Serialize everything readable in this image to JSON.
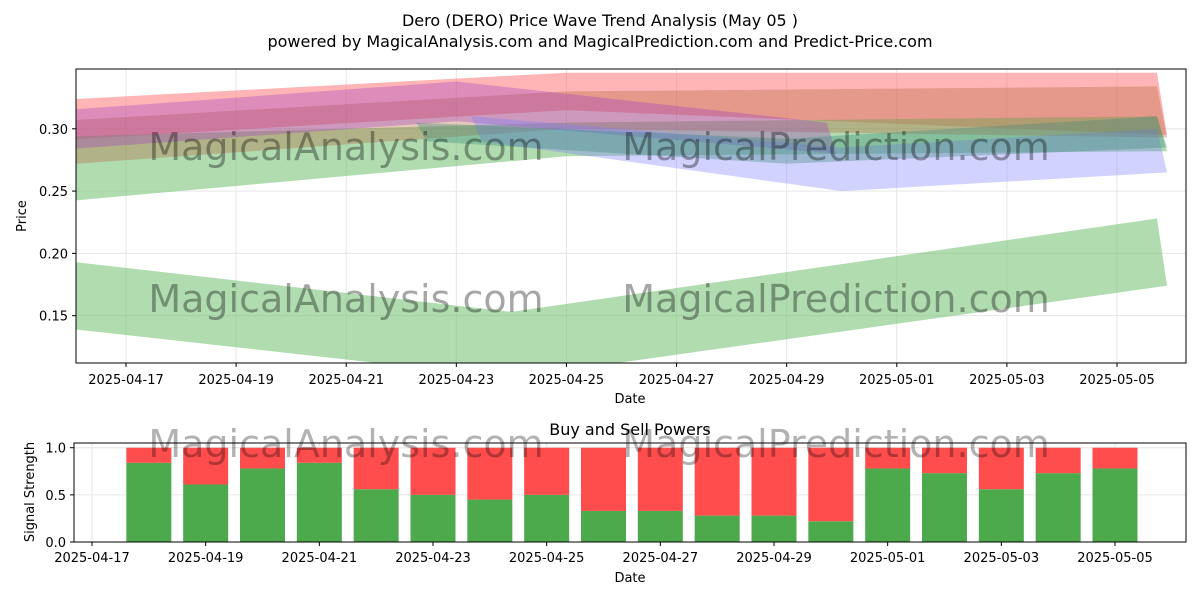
{
  "title": "Dero (DERO) Price Wave Trend Analysis (May 05 )",
  "subtitle": "powered by MagicalAnalysis.com and MagicalPrediction.com and Predict-Price.com",
  "watermark_left": "MagicalAnalysis.com",
  "watermark_right": "MagicalPrediction.com",
  "colors": {
    "red_band": "#ff6b6b",
    "green_band": "#6fbf6f",
    "blue_band": "#7f7fff",
    "purple_band": "#a040c0",
    "brown_band": "#b5653d",
    "teal_band": "#3a8a7a",
    "buy": "#4caa4c",
    "sell": "#ff4c4c",
    "grid": "#e6e6e6"
  },
  "chart_data": [
    {
      "type": "area",
      "xlabel": "Date",
      "ylabel": "Price",
      "ylim": [
        0.112,
        0.348
      ],
      "x_ticks": [
        "2025-04-17",
        "2025-04-19",
        "2025-04-21",
        "2025-04-23",
        "2025-04-25",
        "2025-04-27",
        "2025-04-29",
        "2025-05-01",
        "2025-05-03",
        "2025-05-05"
      ],
      "y_ticks": [
        "0.15",
        "0.20",
        "0.25",
        "0.30"
      ],
      "grid": true,
      "bands": [
        {
          "color": "red",
          "points": [
            {
              "x": "2025-04-16",
              "top": 0.322,
              "bottom": 0.29
            },
            {
              "x": "2025-04-25",
              "top": 0.345,
              "bottom": 0.315
            },
            {
              "x": "2025-05-05",
              "top": 0.345,
              "bottom": 0.295
            }
          ]
        },
        {
          "color": "green",
          "points": [
            {
              "x": "2025-04-16",
              "top": 0.293,
              "bottom": 0.24
            },
            {
              "x": "2025-04-25",
              "top": 0.305,
              "bottom": 0.278
            },
            {
              "x": "2025-05-05",
              "top": 0.31,
              "bottom": 0.282
            }
          ]
        },
        {
          "color": "green",
          "points": [
            {
              "x": "2025-04-16",
              "top": 0.197,
              "bottom": 0.142
            },
            {
              "x": "2025-04-24",
              "top": 0.153,
              "bottom": 0.1
            },
            {
              "x": "2025-05-05",
              "top": 0.228,
              "bottom": 0.174
            }
          ]
        },
        {
          "color": "brown",
          "points": [
            {
              "x": "2025-04-16",
              "top": 0.305,
              "bottom": 0.27
            },
            {
              "x": "2025-04-25",
              "top": 0.33,
              "bottom": 0.3
            },
            {
              "x": "2025-05-05",
              "top": 0.334,
              "bottom": 0.293
            }
          ]
        },
        {
          "color": "purple",
          "points": [
            {
              "x": "2025-04-16",
              "top": 0.313,
              "bottom": 0.282
            },
            {
              "x": "2025-04-23",
              "top": 0.338,
              "bottom": 0.306
            },
            {
              "x": "2025-04-29",
              "top": 0.305,
              "bottom": 0.28
            }
          ]
        },
        {
          "color": "blue",
          "points": [
            {
              "x": "2025-04-24",
              "top": 0.31,
              "bottom": 0.29
            },
            {
              "x": "2025-04-30",
              "top": 0.285,
              "bottom": 0.25
            },
            {
              "x": "2025-05-05",
              "top": 0.3,
              "bottom": 0.265
            }
          ]
        },
        {
          "color": "teal",
          "points": [
            {
              "x": "2025-04-23",
              "top": 0.305,
              "bottom": 0.29
            },
            {
              "x": "2025-04-29",
              "top": 0.292,
              "bottom": 0.272
            },
            {
              "x": "2025-05-05",
              "top": 0.31,
              "bottom": 0.285
            }
          ]
        }
      ]
    },
    {
      "type": "bar",
      "title": "Buy and Sell Powers",
      "xlabel": "Date",
      "ylabel": "Signal Strength",
      "ylim": [
        0,
        1.05
      ],
      "y_ticks": [
        "0.0",
        "0.5",
        "1.0"
      ],
      "x_ticks": [
        "2025-04-17",
        "2025-04-19",
        "2025-04-21",
        "2025-04-23",
        "2025-04-25",
        "2025-04-27",
        "2025-04-29",
        "2025-05-01",
        "2025-05-03",
        "2025-05-05"
      ],
      "categories": [
        "2025-04-18",
        "2025-04-19",
        "2025-04-20",
        "2025-04-21",
        "2025-04-22",
        "2025-04-23",
        "2025-04-24",
        "2025-04-25",
        "2025-04-26",
        "2025-04-27",
        "2025-04-28",
        "2025-04-29",
        "2025-04-30",
        "2025-05-01",
        "2025-05-02",
        "2025-05-03",
        "2025-05-04",
        "2025-05-05"
      ],
      "series": [
        {
          "name": "Buy",
          "values": [
            0.84,
            0.61,
            0.78,
            0.84,
            0.56,
            0.5,
            0.45,
            0.5,
            0.33,
            0.33,
            0.28,
            0.28,
            0.22,
            0.78,
            0.73,
            0.56,
            0.73,
            0.78
          ]
        },
        {
          "name": "Sell",
          "values": [
            0.16,
            0.39,
            0.22,
            0.16,
            0.44,
            0.5,
            0.55,
            0.5,
            0.67,
            0.67,
            0.72,
            0.72,
            0.78,
            0.22,
            0.27,
            0.44,
            0.27,
            0.22
          ]
        }
      ]
    }
  ]
}
